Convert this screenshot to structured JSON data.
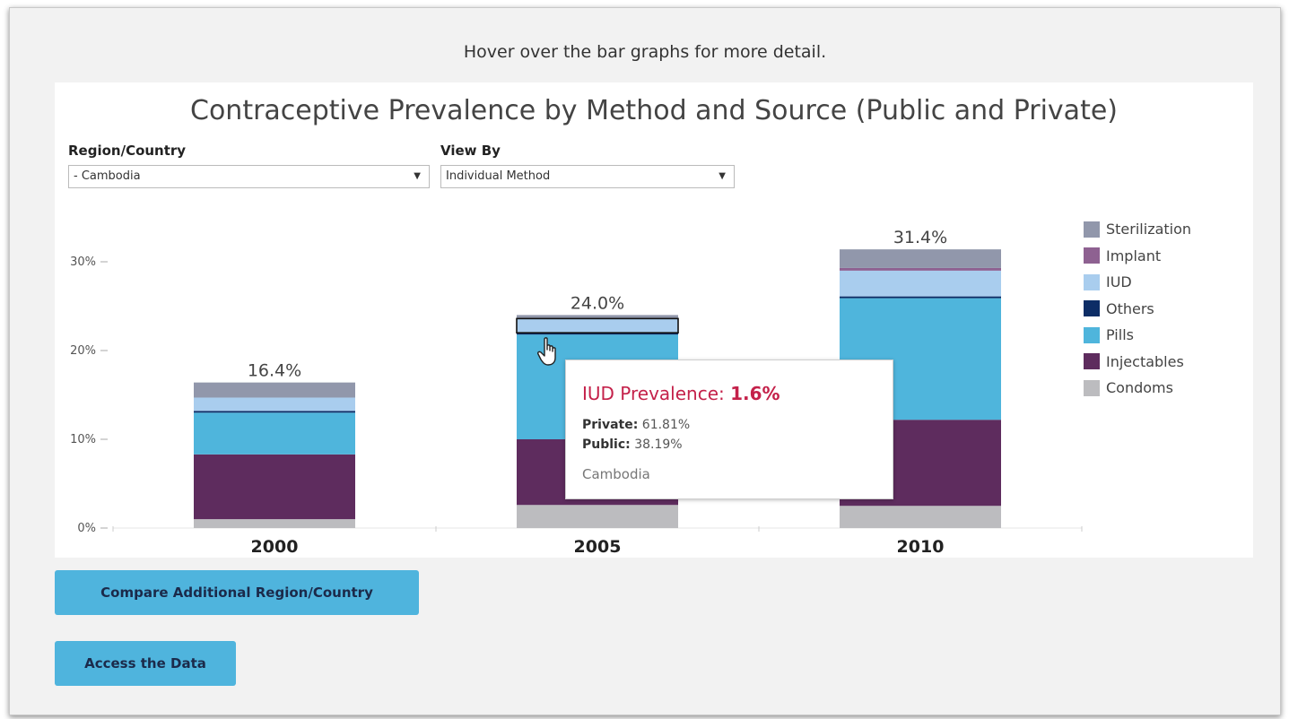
{
  "hint": "Hover over the bar graphs for more detail.",
  "title": "Contraceptive Prevalence by Method and Source (Public and Private)",
  "controls": {
    "region_label": "Region/Country",
    "region_value": "- Cambodia",
    "viewby_label": "View By",
    "viewby_value": "Individual Method"
  },
  "colors": {
    "Sterilization": "#9197ab",
    "Implant": "#8e6191",
    "IUD": "#a9cdee",
    "Others": "#0d2d66",
    "Pills": "#4fb5dc",
    "Injectables": "#5e2c5e",
    "Condoms": "#bcbcbf"
  },
  "chart_data": {
    "type": "bar",
    "stacked": true,
    "categories": [
      "2000",
      "2005",
      "2010"
    ],
    "totals": [
      "16.4%",
      "24.0%",
      "31.4%"
    ],
    "series": [
      {
        "name": "Condoms",
        "values": [
          1.0,
          2.6,
          2.5
        ]
      },
      {
        "name": "Injectables",
        "values": [
          7.3,
          7.4,
          9.7
        ]
      },
      {
        "name": "Pills",
        "values": [
          4.7,
          11.8,
          13.7
        ]
      },
      {
        "name": "Others",
        "values": [
          0.2,
          0.2,
          0.2
        ]
      },
      {
        "name": "IUD",
        "values": [
          1.5,
          1.6,
          2.9
        ]
      },
      {
        "name": "Implant",
        "values": [
          0.0,
          0.0,
          0.3
        ]
      },
      {
        "name": "Sterilization",
        "values": [
          1.7,
          0.4,
          2.1
        ]
      }
    ],
    "yticks": [
      "0%",
      "10%",
      "20%",
      "30%"
    ],
    "ylim": [
      0,
      35
    ],
    "legend_position": "right"
  },
  "tooltip": {
    "title_prefix": "IUD Prevalence: ",
    "title_value": "1.6%",
    "private_label": "Private:",
    "private_value": "61.81%",
    "public_label": "Public:",
    "public_value": "38.19%",
    "region": "Cambodia"
  },
  "buttons": {
    "compare": "Compare Additional Region/Country",
    "access": "Access the Data"
  }
}
